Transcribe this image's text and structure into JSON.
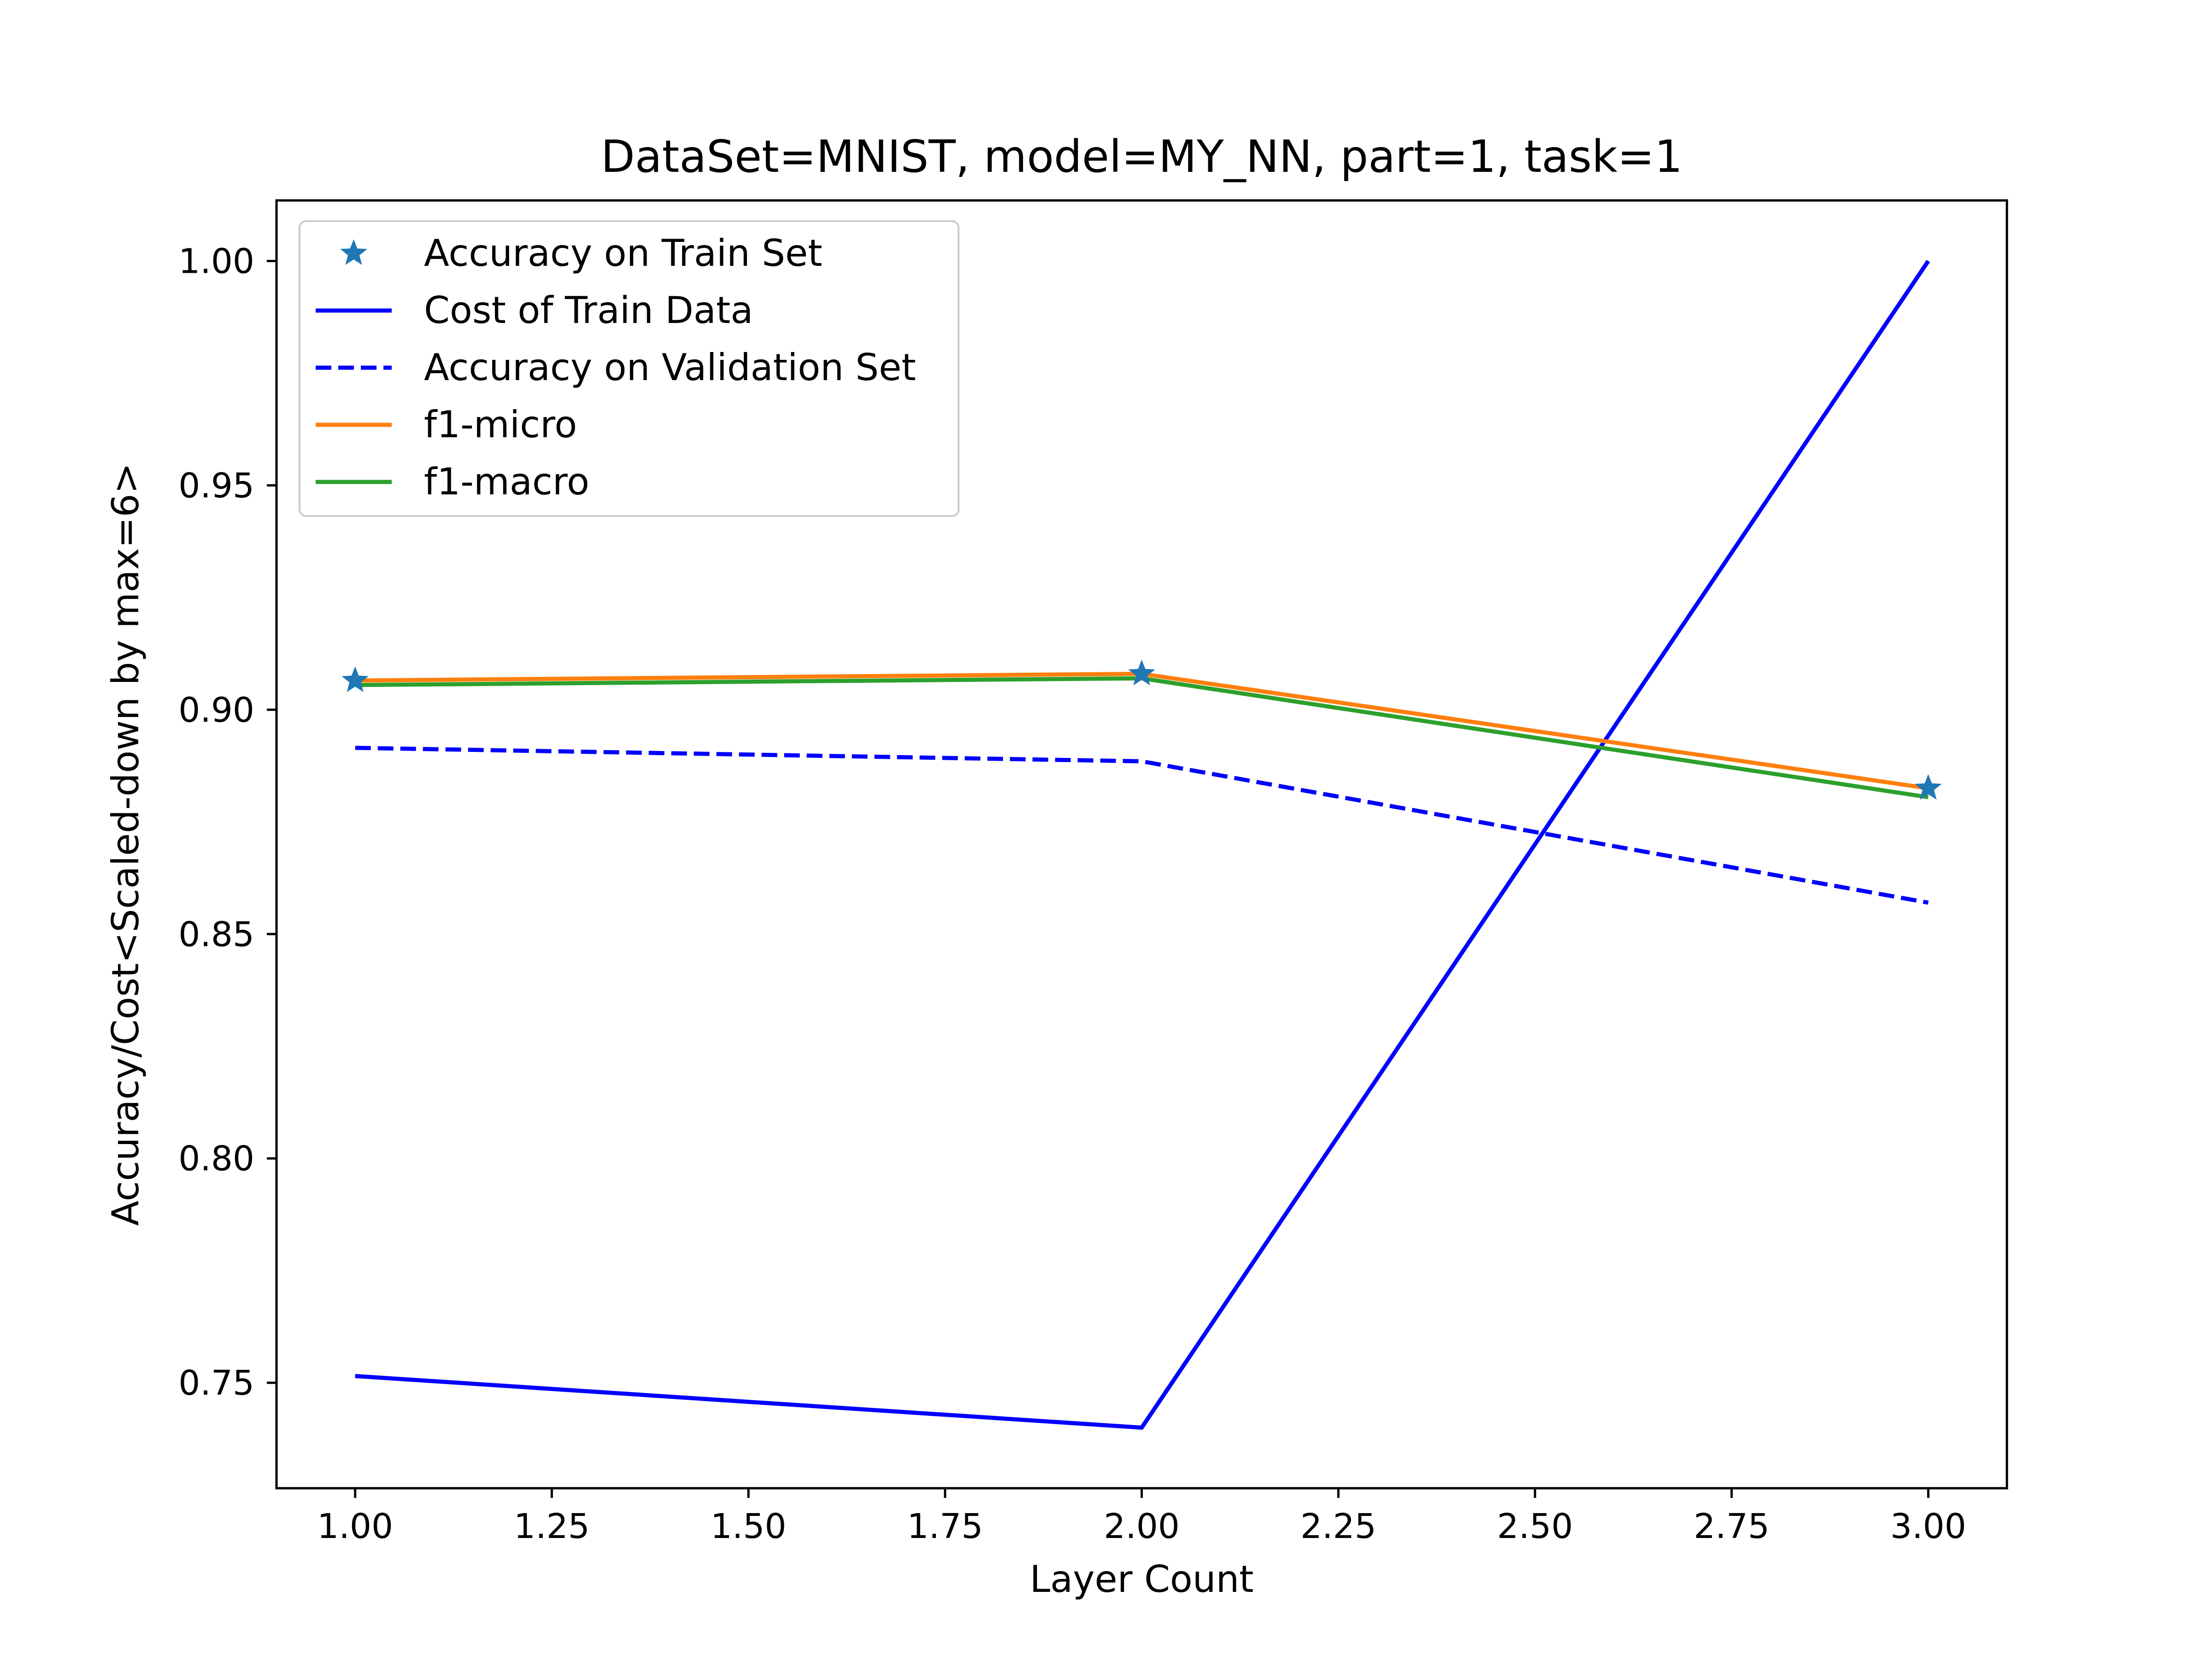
{
  "chart_data": {
    "type": "line",
    "title": "DataSet=MNIST, model=MY_NN, part=1, task=1",
    "xlabel": "Layer Count",
    "ylabel": "Accuracy/Cost<Scaled-down by max=6>",
    "x": [
      1,
      2,
      3
    ],
    "xlim": [
      0.9,
      3.1
    ],
    "ylim": [
      0.7265,
      1.0135
    ],
    "xticks": [
      1.0,
      1.25,
      1.5,
      1.75,
      2.0,
      2.25,
      2.5,
      2.75,
      3.0
    ],
    "xtick_labels": [
      "1.00",
      "1.25",
      "1.50",
      "1.75",
      "2.00",
      "2.25",
      "2.50",
      "2.75",
      "3.00"
    ],
    "yticks": [
      0.75,
      0.8,
      0.85,
      0.9,
      0.95,
      1.0
    ],
    "ytick_labels": [
      "0.75",
      "0.80",
      "0.85",
      "0.90",
      "0.95",
      "1.00"
    ],
    "grid": false,
    "legend_position": "top-left",
    "series": [
      {
        "name": "Accuracy on Train Set",
        "values": [
          0.9065,
          0.908,
          0.8825
        ],
        "color": "#1f77b4",
        "style": "marker-star"
      },
      {
        "name": "Cost of Train Data",
        "values": [
          0.7515,
          0.74,
          1.0
        ],
        "color": "#0000ff",
        "style": "solid"
      },
      {
        "name": "Accuracy on Validation Set",
        "values": [
          0.8915,
          0.8885,
          0.857
        ],
        "color": "#0000ff",
        "style": "dashed"
      },
      {
        "name": "f1-micro",
        "values": [
          0.9065,
          0.908,
          0.8825
        ],
        "color": "#ff7f0e",
        "style": "solid"
      },
      {
        "name": "f1-macro",
        "values": [
          0.9055,
          0.907,
          0.8805
        ],
        "color": "#2ca02c",
        "style": "solid"
      }
    ]
  }
}
